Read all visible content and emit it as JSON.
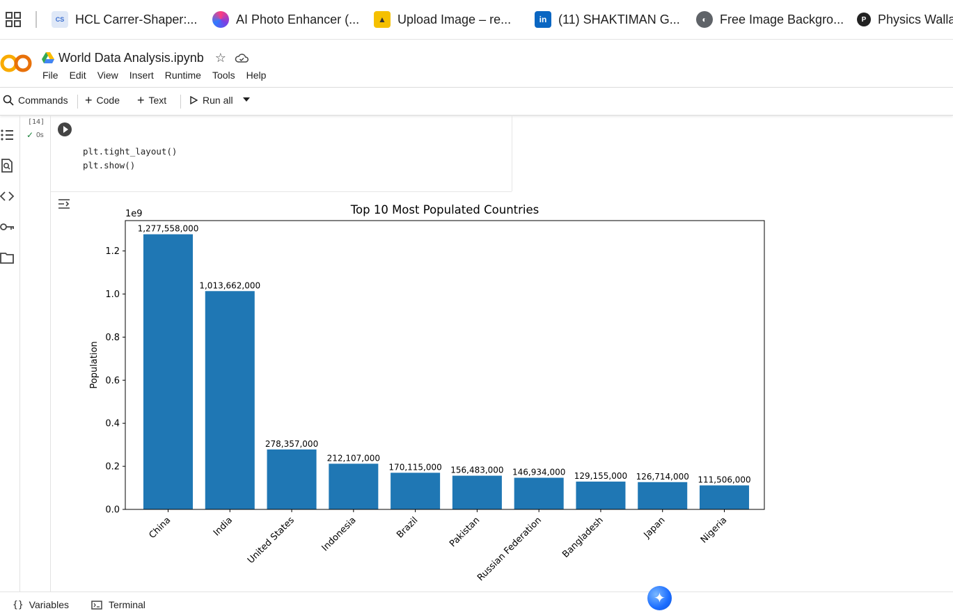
{
  "bookmarks": [
    {
      "label": "HCL Carrer-Shaper:...",
      "icon": "career-shaper-icon",
      "color": "#3b6fd1"
    },
    {
      "label": "AI Photo Enhancer (...",
      "icon": "photo-enhancer-icon",
      "color": "#7b3fe4"
    },
    {
      "label": "Upload Image – re...",
      "icon": "upload-image-icon",
      "color": "#f5c000"
    },
    {
      "label": "(11) SHAKTIMAN G...",
      "icon": "linkedin-icon",
      "color": "#0a66c2"
    },
    {
      "label": "Free Image Backgro...",
      "icon": "globe-icon",
      "color": "#5f6368"
    },
    {
      "label": "Physics Walla",
      "icon": "physics-walla-icon",
      "color": "#222222"
    }
  ],
  "notebook": {
    "title": "World Data Analysis.ipynb",
    "logo_text": "CO"
  },
  "menu": [
    "File",
    "Edit",
    "View",
    "Insert",
    "Runtime",
    "Tools",
    "Help"
  ],
  "toolbar": {
    "commands": "Commands",
    "code": "Code",
    "text": "Text",
    "run_all": "Run all"
  },
  "cell": {
    "exec_count": "[14]",
    "exec_time": "0s",
    "lines": [
      "plt.tight_layout()",
      "plt.show()"
    ]
  },
  "chart_data": {
    "type": "bar",
    "title": "Top 10 Most Populated Countries",
    "xlabel": "",
    "ylabel": "Population",
    "offset_label": "1e9",
    "categories": [
      "China",
      "India",
      "United States",
      "Indonesia",
      "Brazil",
      "Pakistan",
      "Russian Federation",
      "Bangladesh",
      "Japan",
      "Nigeria"
    ],
    "values": [
      1277558000,
      1013662000,
      278357000,
      212107000,
      170115000,
      156483000,
      146934000,
      129155000,
      126714000,
      111506000
    ],
    "value_labels": [
      "1,277,558,000",
      "1,013,662,000",
      "278,357,000",
      "212,107,000",
      "170,115,000",
      "156,483,000",
      "146,934,000",
      "129,155,000",
      "126,714,000",
      "111,506,000"
    ],
    "yticks": [
      0,
      0.2,
      0.4,
      0.6,
      0.8,
      1.0,
      1.2
    ],
    "ytick_labels": [
      "0.0",
      "0.2",
      "0.4",
      "0.6",
      "0.8",
      "1.0",
      "1.2"
    ],
    "ylim": [
      0,
      1.341
    ],
    "bar_color": "#1f77b4",
    "grid": false
  },
  "bottom": {
    "variables": "Variables",
    "terminal": "Terminal"
  }
}
